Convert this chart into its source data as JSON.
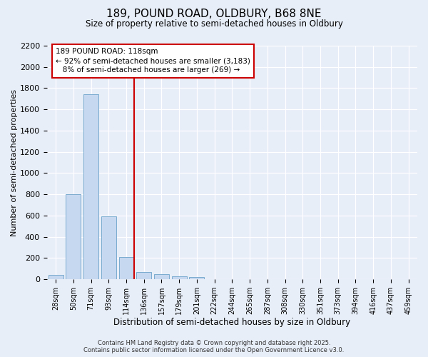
{
  "title1": "189, POUND ROAD, OLDBURY, B68 8NE",
  "title2": "Size of property relative to semi-detached houses in Oldbury",
  "xlabel": "Distribution of semi-detached houses by size in Oldbury",
  "ylabel": "Number of semi-detached properties",
  "categories": [
    "28sqm",
    "50sqm",
    "71sqm",
    "93sqm",
    "114sqm",
    "136sqm",
    "157sqm",
    "179sqm",
    "201sqm",
    "222sqm",
    "244sqm",
    "265sqm",
    "287sqm",
    "308sqm",
    "330sqm",
    "351sqm",
    "373sqm",
    "394sqm",
    "416sqm",
    "437sqm",
    "459sqm"
  ],
  "values": [
    40,
    800,
    1740,
    590,
    210,
    65,
    45,
    30,
    20,
    0,
    0,
    0,
    0,
    0,
    0,
    0,
    0,
    0,
    0,
    0,
    0
  ],
  "bar_color": "#c5d8f0",
  "bar_edge_color": "#7aabce",
  "vline_index": 4,
  "vline_color": "#cc0000",
  "annotation_line1": "189 POUND ROAD: 118sqm",
  "annotation_line2": "← 92% of semi-detached houses are smaller (3,183)",
  "annotation_line3": "   8% of semi-detached houses are larger (269) →",
  "ylim_max": 2200,
  "yticks": [
    0,
    200,
    400,
    600,
    800,
    1000,
    1200,
    1400,
    1600,
    1800,
    2000,
    2200
  ],
  "bg_color": "#e8eef8",
  "grid_color": "#ffffff",
  "footer1": "Contains HM Land Registry data © Crown copyright and database right 2025.",
  "footer2": "Contains public sector information licensed under the Open Government Licence v3.0."
}
